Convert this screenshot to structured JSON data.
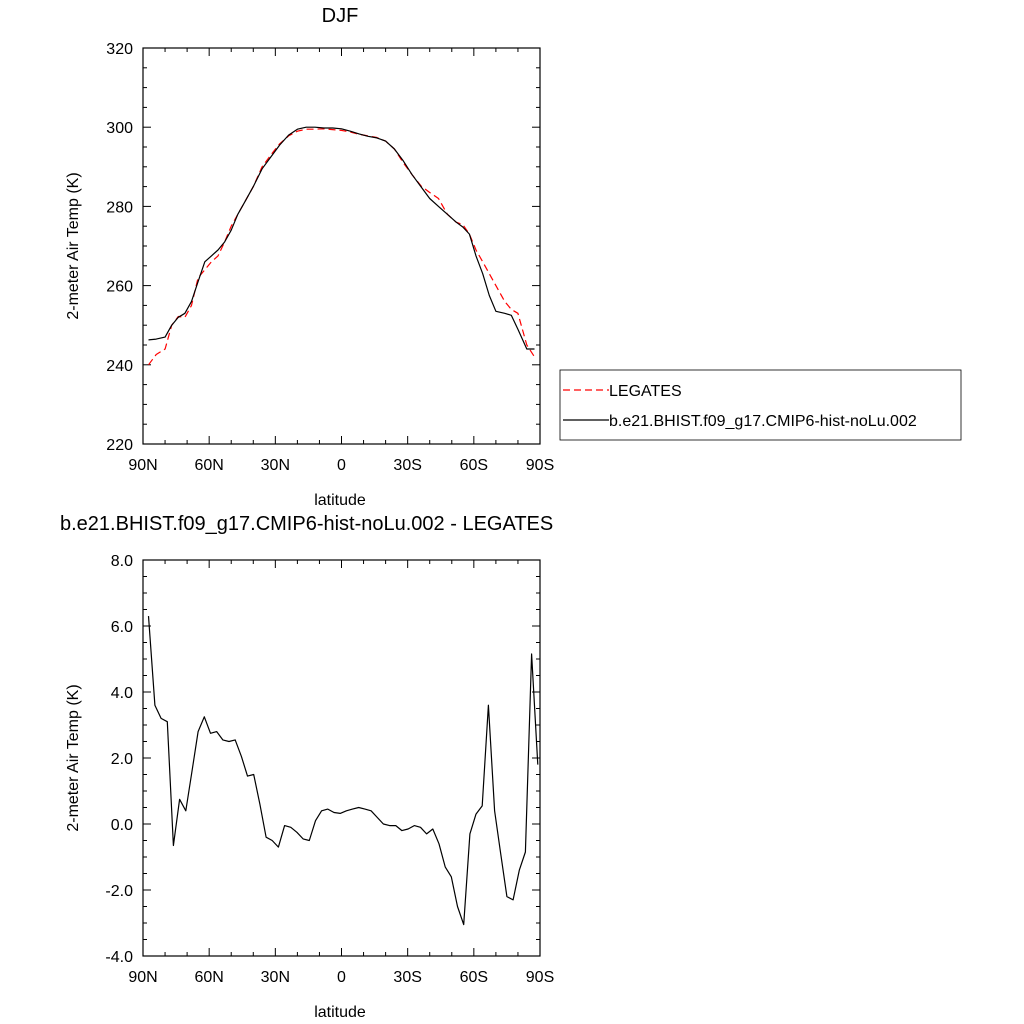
{
  "chart_data": [
    {
      "type": "line",
      "title": "DJF",
      "xlabel": "latitude",
      "ylabel": "2-meter Air Temp (K)",
      "xlim": [
        90,
        -90
      ],
      "ylim": [
        220,
        320
      ],
      "xticks": [
        90,
        60,
        30,
        0,
        -30,
        -60,
        -90
      ],
      "xtick_labels": [
        "90N",
        "60N",
        "30N",
        "0",
        "30S",
        "60S",
        "90S"
      ],
      "yticks": [
        220,
        240,
        260,
        280,
        300,
        320
      ],
      "ytick_labels": [
        "220",
        "240",
        "260",
        "280",
        "300",
        "320"
      ],
      "grid": false,
      "legend_position": "outside-right",
      "series": [
        {
          "name": "LEGATES",
          "color": "#ff0000",
          "dash": "dashed",
          "x": [
            87.5,
            84,
            80,
            77,
            74,
            71,
            68,
            65,
            62,
            59,
            56,
            53,
            50,
            47,
            44,
            40,
            36,
            32,
            28,
            24,
            20,
            16,
            12,
            8,
            4,
            0,
            -4,
            -8,
            -12,
            -16,
            -20,
            -24,
            -28,
            -32,
            -36,
            -40,
            -44,
            -48,
            -52,
            -55,
            -58,
            -61,
            -64,
            -67,
            -70,
            -74,
            -77,
            -80,
            -84,
            -87.5
          ],
          "y": [
            240,
            242.6,
            244,
            250,
            252.2,
            252,
            255,
            262,
            264,
            266,
            267.5,
            271,
            275,
            278,
            281,
            285,
            290,
            293,
            295.8,
            297.8,
            299,
            299.5,
            299.5,
            299.6,
            299.4,
            299.2,
            298.8,
            298.2,
            297.8,
            297.4,
            296.5,
            294.5,
            291,
            288,
            285.2,
            283.5,
            282,
            278,
            276,
            275.4,
            273,
            269,
            266,
            263,
            260,
            256,
            254,
            253,
            245,
            242
          ]
        },
        {
          "name": "b.e21.BHIST.f09_g17.CMIP6-hist-noLu.002",
          "color": "#000000",
          "dash": "solid",
          "x": [
            87.5,
            84,
            80,
            77,
            74,
            71,
            68,
            65,
            62,
            59,
            56,
            53,
            50,
            47,
            44,
            40,
            36,
            32,
            28,
            24,
            20,
            16,
            12,
            8,
            4,
            0,
            -4,
            -8,
            -12,
            -16,
            -20,
            -24,
            -28,
            -32,
            -36,
            -40,
            -44,
            -48,
            -52,
            -55,
            -58,
            -61,
            -64,
            -67,
            -70,
            -74,
            -77,
            -80,
            -84,
            -87.5
          ],
          "y": [
            246.3,
            246.5,
            247,
            250,
            252,
            253,
            256,
            261,
            266,
            267.5,
            269,
            271,
            274,
            278,
            281,
            285,
            289.5,
            292.5,
            295.5,
            298,
            299.5,
            300,
            300,
            299.8,
            299.8,
            299.6,
            299,
            298.3,
            297.7,
            297.3,
            296.5,
            294.5,
            291.5,
            288,
            285,
            282,
            280,
            278,
            276,
            274.8,
            273,
            267.5,
            263,
            257.5,
            253.5,
            253,
            252.5,
            249,
            244,
            244
          ]
        }
      ]
    },
    {
      "type": "line",
      "title": "b.e21.BHIST.f09_g17.CMIP6-hist-noLu.002 - LEGATES",
      "xlabel": "latitude",
      "ylabel": "2-meter Air Temp (K)",
      "xlim": [
        90,
        -90
      ],
      "ylim": [
        -4,
        8
      ],
      "xticks": [
        90,
        60,
        30,
        0,
        -30,
        -60,
        -90
      ],
      "xtick_labels": [
        "90N",
        "60N",
        "30N",
        "0",
        "30S",
        "60S",
        "90S"
      ],
      "yticks": [
        -4,
        -2,
        0,
        2,
        4,
        6,
        8
      ],
      "ytick_labels": [
        "-4.0",
        "-2.0",
        "0.0",
        "2.0",
        "4.0",
        "6.0",
        "8.0"
      ],
      "grid": false,
      "series": [
        {
          "color": "#000000",
          "dash": "solid",
          "x": [
            87.5,
            84.6,
            81.8,
            79.0,
            76.2,
            73.4,
            70.6,
            67.8,
            65.0,
            62.2,
            59.4,
            56.6,
            53.8,
            51.0,
            48.2,
            45.4,
            42.6,
            39.8,
            37.0,
            34.2,
            31.4,
            28.6,
            25.8,
            23.0,
            20.2,
            17.4,
            14.6,
            11.8,
            9.0,
            6.2,
            3.4,
            0.6,
            -2.2,
            -5.0,
            -7.8,
            -10.6,
            -13.4,
            -16.2,
            -19.0,
            -21.8,
            -24.6,
            -27.4,
            -30.2,
            -33.0,
            -35.8,
            -38.6,
            -41.4,
            -44.2,
            -47.0,
            -49.8,
            -52.6,
            -55.4,
            -58.2,
            -61.0,
            -63.8,
            -66.6,
            -69.4,
            -72.2,
            -75.0,
            -77.8,
            -80.6,
            -83.4,
            -86.2,
            -89.0
          ],
          "y": [
            6.3,
            3.6,
            3.2,
            3.1,
            -0.65,
            0.75,
            0.4,
            1.6,
            2.8,
            3.25,
            2.75,
            2.8,
            2.55,
            2.5,
            2.55,
            2.05,
            1.45,
            1.5,
            0.6,
            -0.4,
            -0.5,
            -0.7,
            -0.05,
            -0.1,
            -0.25,
            -0.45,
            -0.5,
            0.1,
            0.4,
            0.45,
            0.35,
            0.32,
            0.4,
            0.45,
            0.5,
            0.45,
            0.4,
            0.2,
            0.0,
            -0.05,
            -0.05,
            -0.2,
            -0.15,
            -0.05,
            -0.1,
            -0.3,
            -0.15,
            -0.6,
            -1.3,
            -1.6,
            -2.5,
            -3.05,
            -0.3,
            0.3,
            0.55,
            3.6,
            0.4,
            -0.9,
            -2.2,
            -2.3,
            -1.4,
            -0.85,
            5.15,
            1.8
          ]
        }
      ]
    }
  ]
}
